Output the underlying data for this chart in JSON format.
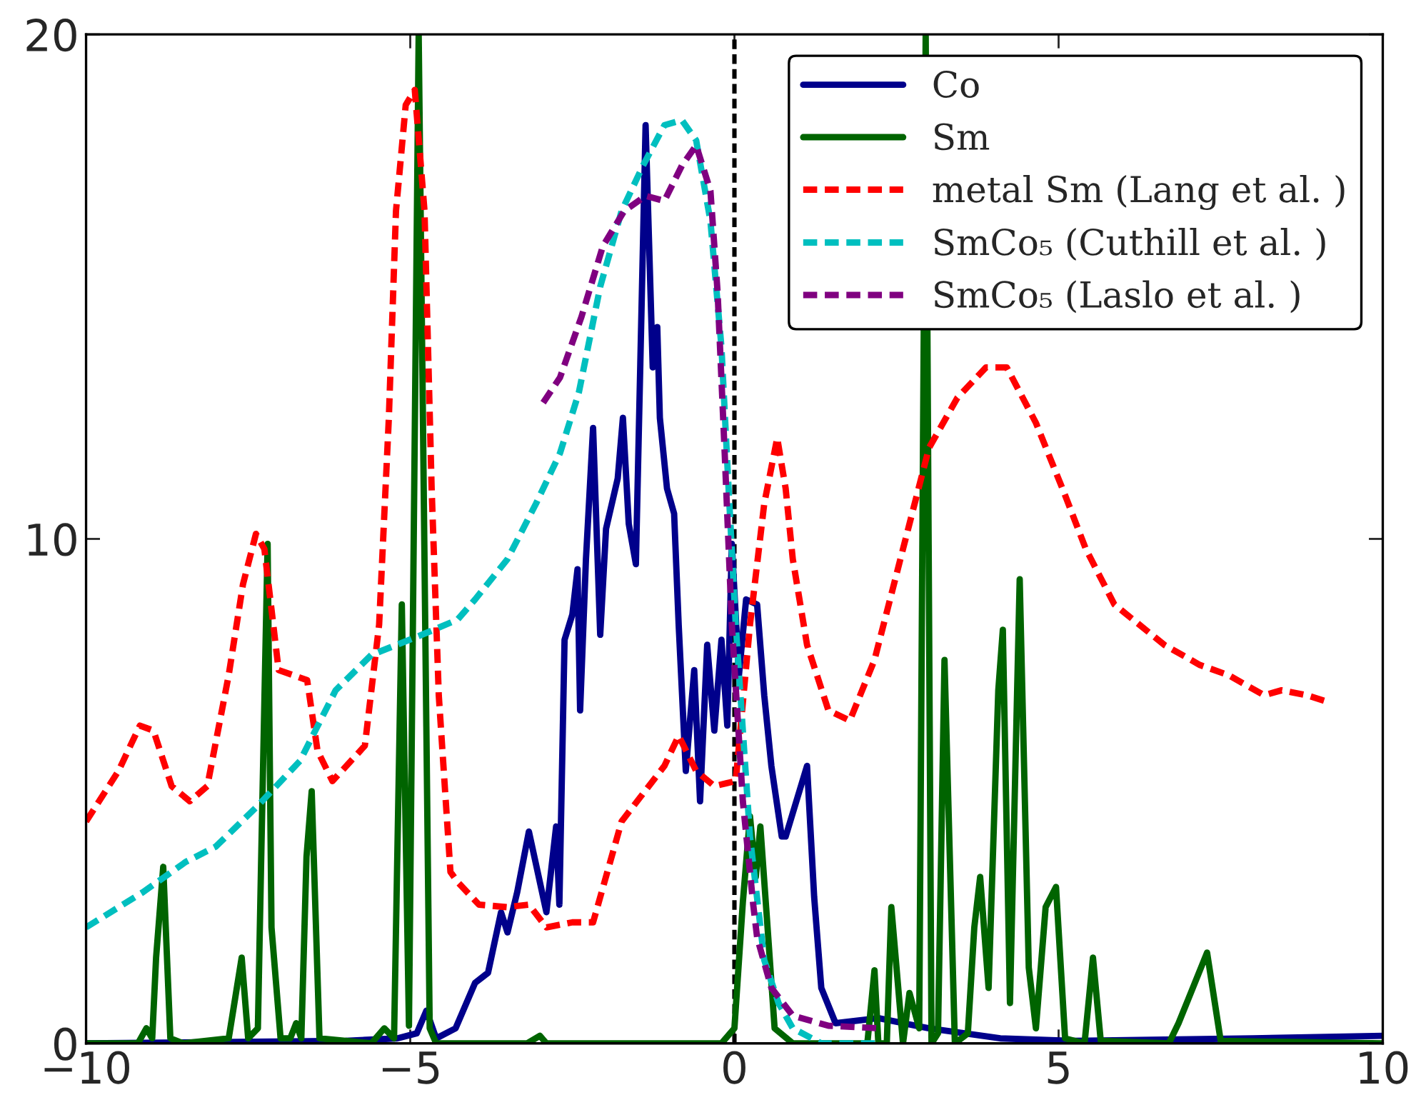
{
  "chart_data": {
    "type": "line",
    "xlim": [
      -10,
      10
    ],
    "ylim": [
      0,
      20
    ],
    "xticks": [
      -10,
      -5,
      0,
      5,
      10
    ],
    "yticks": [
      0,
      10,
      20
    ],
    "grid": false,
    "legend": "top right",
    "ref_lines": [
      {
        "axis": "x",
        "value": 0,
        "color": "#000000",
        "line_style": "dashed"
      }
    ],
    "series": [
      {
        "name": "Co",
        "color": "#00008b",
        "line_style": "solid",
        "x": [
          -10,
          -6,
          -5.2,
          -4.9,
          -4.75,
          -4.6,
          -4.3,
          -4.0,
          -3.8,
          -3.6,
          -3.5,
          -3.35,
          -3.17,
          -2.9,
          -2.75,
          -2.7,
          -2.62,
          -2.5,
          -2.42,
          -2.38,
          -2.29,
          -2.18,
          -2.07,
          -1.98,
          -1.8,
          -1.72,
          -1.63,
          -1.52,
          -1.37,
          -1.26,
          -1.19,
          -1.15,
          -1.04,
          -0.93,
          -0.86,
          -0.75,
          -0.62,
          -0.53,
          -0.42,
          -0.31,
          -0.2,
          -0.11,
          -0.04,
          0.07,
          0.18,
          0.35,
          0.46,
          0.57,
          0.73,
          0.79,
          1.12,
          1.23,
          1.34,
          1.56,
          2.22,
          3.0,
          4.1,
          5.2,
          8.0,
          10
        ],
        "values": [
          0,
          0.05,
          0.1,
          0.2,
          0.65,
          0.1,
          0.3,
          1.2,
          1.4,
          2.6,
          2.2,
          3.0,
          4.2,
          2.6,
          4.3,
          2.75,
          8.0,
          8.5,
          9.4,
          6.6,
          9.6,
          12.2,
          8.1,
          10.2,
          11.2,
          12.4,
          10.3,
          9.5,
          18.2,
          13.4,
          14.2,
          12.4,
          11.0,
          10.5,
          8.3,
          5.4,
          7.4,
          4.8,
          7.9,
          6.2,
          8.0,
          6.3,
          9.9,
          7.3,
          8.8,
          8.7,
          6.9,
          5.5,
          4.1,
          4.1,
          5.5,
          2.9,
          1.1,
          0.4,
          0.5,
          0.3,
          0.1,
          0.05,
          0.1,
          0.15
        ]
      },
      {
        "name": "Sm",
        "color": "#006400",
        "line_style": "solid",
        "x": [
          -10,
          -9.2,
          -9.07,
          -8.98,
          -8.92,
          -8.81,
          -8.7,
          -8.5,
          -7.8,
          -7.7,
          -7.6,
          -7.5,
          -7.35,
          -7.3,
          -7.2,
          -7.14,
          -7.0,
          -6.85,
          -6.76,
          -6.68,
          -6.6,
          -6.52,
          -6.4,
          -5.6,
          -5.4,
          -5.25,
          -5.13,
          -5.02,
          -4.87,
          -4.7,
          -4.6,
          -3.2,
          -3.0,
          -2.9,
          -0.2,
          0.0,
          0.13,
          0.24,
          0.33,
          0.4,
          0.5,
          0.62,
          0.9,
          2.05,
          2.16,
          2.22,
          2.35,
          2.42,
          2.6,
          2.7,
          2.85,
          2.95,
          3.04,
          3.14,
          3.24,
          3.4,
          3.6,
          3.7,
          3.79,
          3.92,
          4.07,
          4.14,
          4.25,
          4.4,
          4.54,
          4.65,
          4.8,
          4.96,
          5.1,
          5.4,
          5.53,
          5.65,
          6.7,
          6.85,
          7.07,
          7.29,
          7.5,
          10
        ],
        "values": [
          0,
          0,
          0.3,
          0.1,
          1.7,
          3.5,
          0.1,
          0,
          0.1,
          0.9,
          1.7,
          0.1,
          0.3,
          3.6,
          9.9,
          2.3,
          0.1,
          0.1,
          0.4,
          0.1,
          3.7,
          5.0,
          0.1,
          0,
          0.3,
          0.1,
          8.7,
          0.35,
          20,
          0.3,
          0,
          0,
          0.15,
          0,
          0,
          0.3,
          2.8,
          4.5,
          3.3,
          4.3,
          2.5,
          0.3,
          0,
          0,
          1.45,
          0,
          0,
          2.7,
          0,
          1.0,
          0.3,
          20,
          0,
          0.2,
          7.6,
          0,
          0.2,
          2.3,
          3.3,
          1.1,
          7.0,
          8.2,
          0.8,
          9.2,
          1.5,
          0.3,
          2.7,
          3.1,
          0.1,
          0,
          1.7,
          0.05,
          0,
          0.4,
          1.1,
          1.8,
          0.05,
          0
        ]
      },
      {
        "name": "metal Sm (Lang et al. )",
        "color": "#ff0000",
        "line_style": "dashed",
        "x": [
          -10,
          -9.5,
          -9.17,
          -8.96,
          -8.68,
          -8.4,
          -8.13,
          -7.8,
          -7.58,
          -7.38,
          -7.25,
          -7.03,
          -6.59,
          -6.43,
          -6.2,
          -5.7,
          -5.48,
          -5.33,
          -5.22,
          -5.07,
          -4.93,
          -4.78,
          -4.67,
          -4.56,
          -4.38,
          -4.27,
          -3.94,
          -3.5,
          -3.17,
          -2.9,
          -2.5,
          -2.18,
          -1.74,
          -1.41,
          -1.08,
          -0.86,
          -0.59,
          -0.31,
          0.02,
          0.24,
          0.46,
          0.66,
          0.79,
          0.9,
          1.12,
          1.45,
          1.78,
          2.16,
          2.56,
          3.0,
          3.44,
          3.88,
          4.2,
          4.65,
          5.09,
          5.42,
          5.86,
          6.63,
          7.18,
          7.62,
          8.17,
          8.44,
          8.83,
          9.2
        ],
        "values": [
          4.4,
          5.4,
          6.3,
          6.2,
          5.1,
          4.8,
          5.1,
          7.3,
          9.1,
          10.1,
          9.8,
          7.4,
          7.2,
          5.8,
          5.2,
          5.9,
          8.3,
          12.4,
          16.5,
          18.6,
          18.9,
          16.5,
          11.0,
          6.9,
          3.4,
          3.2,
          2.75,
          2.7,
          2.75,
          2.3,
          2.4,
          2.4,
          4.4,
          4.95,
          5.5,
          6.1,
          5.4,
          5.1,
          5.2,
          8.3,
          10.7,
          12.0,
          11.0,
          9.6,
          7.9,
          6.6,
          6.4,
          7.6,
          9.6,
          11.8,
          12.8,
          13.4,
          13.4,
          12.3,
          10.9,
          9.8,
          8.7,
          7.9,
          7.5,
          7.3,
          6.9,
          7.0,
          6.9,
          6.75
        ]
      },
      {
        "name": "SmCo₅ (Cuthill et al. )",
        "color": "#00bfbf",
        "line_style": "dashed",
        "x": [
          -10,
          -9.12,
          -8.46,
          -8.0,
          -7.36,
          -6.7,
          -6.15,
          -5.6,
          -4.82,
          -4.27,
          -4.0,
          -3.5,
          -3.06,
          -2.69,
          -2.4,
          -2.07,
          -1.74,
          -1.41,
          -1.08,
          -0.81,
          -0.59,
          -0.37,
          -0.2,
          -0.09,
          0.02,
          0.13,
          0.24,
          0.46,
          0.68,
          0.9,
          1.34,
          2.2
        ],
        "values": [
          2.3,
          3.0,
          3.6,
          3.9,
          4.7,
          5.6,
          7.0,
          7.7,
          8.1,
          8.4,
          8.8,
          9.6,
          10.7,
          11.7,
          12.9,
          15.0,
          16.5,
          17.4,
          18.2,
          18.3,
          17.9,
          16.3,
          13.8,
          11.0,
          8.3,
          6.2,
          4.1,
          1.65,
          0.8,
          0.3,
          0,
          0
        ]
      },
      {
        "name": "SmCo₅ (Laslo et al. )",
        "color": "#800080",
        "line_style": "dashed",
        "x": [
          -2.95,
          -2.69,
          -2.36,
          -2.03,
          -1.7,
          -1.37,
          -1.08,
          -0.81,
          -0.59,
          -0.37,
          -0.26,
          -0.15,
          -0.04,
          0.13,
          0.29,
          0.35,
          0.57,
          0.9,
          1.45,
          2.22
        ],
        "values": [
          12.7,
          13.2,
          14.4,
          15.8,
          16.5,
          16.8,
          16.7,
          17.4,
          17.8,
          16.9,
          14.9,
          11.7,
          8.3,
          4.8,
          2.75,
          2.1,
          1.1,
          0.55,
          0.35,
          0.3
        ]
      }
    ]
  }
}
